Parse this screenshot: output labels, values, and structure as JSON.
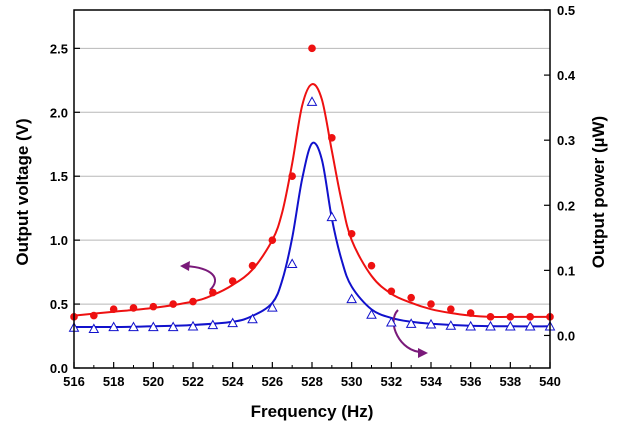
{
  "chart_data": {
    "type": "line",
    "title": "",
    "xlabel": "Frequency (Hz)",
    "ylabel": "Output voltage (V)",
    "y2label": "Output power (µW)",
    "xlim": [
      516,
      540
    ],
    "ylim": [
      0.0,
      2.8
    ],
    "y2lim": [
      -0.05,
      0.5
    ],
    "grid": "horizontal",
    "x_ticks": [
      "516",
      "518",
      "520",
      "522",
      "524",
      "526",
      "528",
      "530",
      "532",
      "534",
      "536",
      "538",
      "540"
    ],
    "y_ticks": [
      "0.0",
      "0.5",
      "1.0",
      "1.5",
      "2.0",
      "2.5"
    ],
    "y2_ticks": [
      "0.0",
      "0.1",
      "0.2",
      "0.3",
      "0.4",
      "0.5"
    ],
    "colors": {
      "voltage": "#ee1111",
      "power": "#1111cc",
      "arrow": "#7a1a7a"
    },
    "series": [
      {
        "key": "voltage",
        "axis": "left",
        "marker": "filled-circle",
        "x": [
          516,
          517,
          518,
          519,
          520,
          521,
          522,
          523,
          524,
          525,
          526,
          527,
          528,
          529,
          530,
          531,
          532,
          533,
          534,
          535,
          536,
          537,
          538,
          539,
          540
        ],
        "values": [
          0.4,
          0.41,
          0.46,
          0.47,
          0.48,
          0.5,
          0.52,
          0.59,
          0.68,
          0.8,
          1.0,
          1.5,
          2.5,
          1.8,
          1.05,
          0.8,
          0.6,
          0.55,
          0.5,
          0.46,
          0.43,
          0.4,
          0.4,
          0.4,
          0.4
        ],
        "fit_x": [
          516,
          518,
          520,
          522,
          523,
          524,
          525,
          526,
          526.5,
          527,
          527.5,
          528,
          528.5,
          529,
          529.5,
          530,
          531,
          532,
          533,
          534,
          535,
          536,
          537,
          538,
          540
        ],
        "fit_y": [
          0.41,
          0.44,
          0.47,
          0.52,
          0.57,
          0.65,
          0.77,
          1.0,
          1.22,
          1.6,
          2.05,
          2.22,
          2.1,
          1.7,
          1.3,
          1.0,
          0.72,
          0.58,
          0.51,
          0.46,
          0.43,
          0.41,
          0.4,
          0.4,
          0.4
        ]
      },
      {
        "key": "power",
        "axis": "right",
        "marker": "open-triangle",
        "x": [
          516,
          517,
          518,
          519,
          520,
          521,
          522,
          523,
          524,
          525,
          526,
          527,
          528,
          529,
          530,
          531,
          532,
          533,
          534,
          535,
          536,
          537,
          538,
          539,
          540
        ],
        "values": [
          0.012,
          0.01,
          0.013,
          0.013,
          0.013,
          0.013,
          0.014,
          0.016,
          0.019,
          0.025,
          0.043,
          0.11,
          0.359,
          0.182,
          0.056,
          0.032,
          0.02,
          0.018,
          0.017,
          0.015,
          0.014,
          0.014,
          0.014,
          0.014,
          0.014
        ],
        "fit_x": [
          516,
          518,
          520,
          522,
          524,
          525,
          526,
          526.5,
          527,
          527.5,
          528,
          528.5,
          529,
          529.5,
          530,
          531,
          532,
          533,
          534,
          536,
          538,
          540
        ],
        "fit_y": [
          0.013,
          0.013,
          0.014,
          0.016,
          0.021,
          0.03,
          0.05,
          0.085,
          0.15,
          0.24,
          0.295,
          0.27,
          0.18,
          0.115,
          0.075,
          0.04,
          0.027,
          0.021,
          0.018,
          0.015,
          0.014,
          0.014
        ]
      }
    ]
  }
}
